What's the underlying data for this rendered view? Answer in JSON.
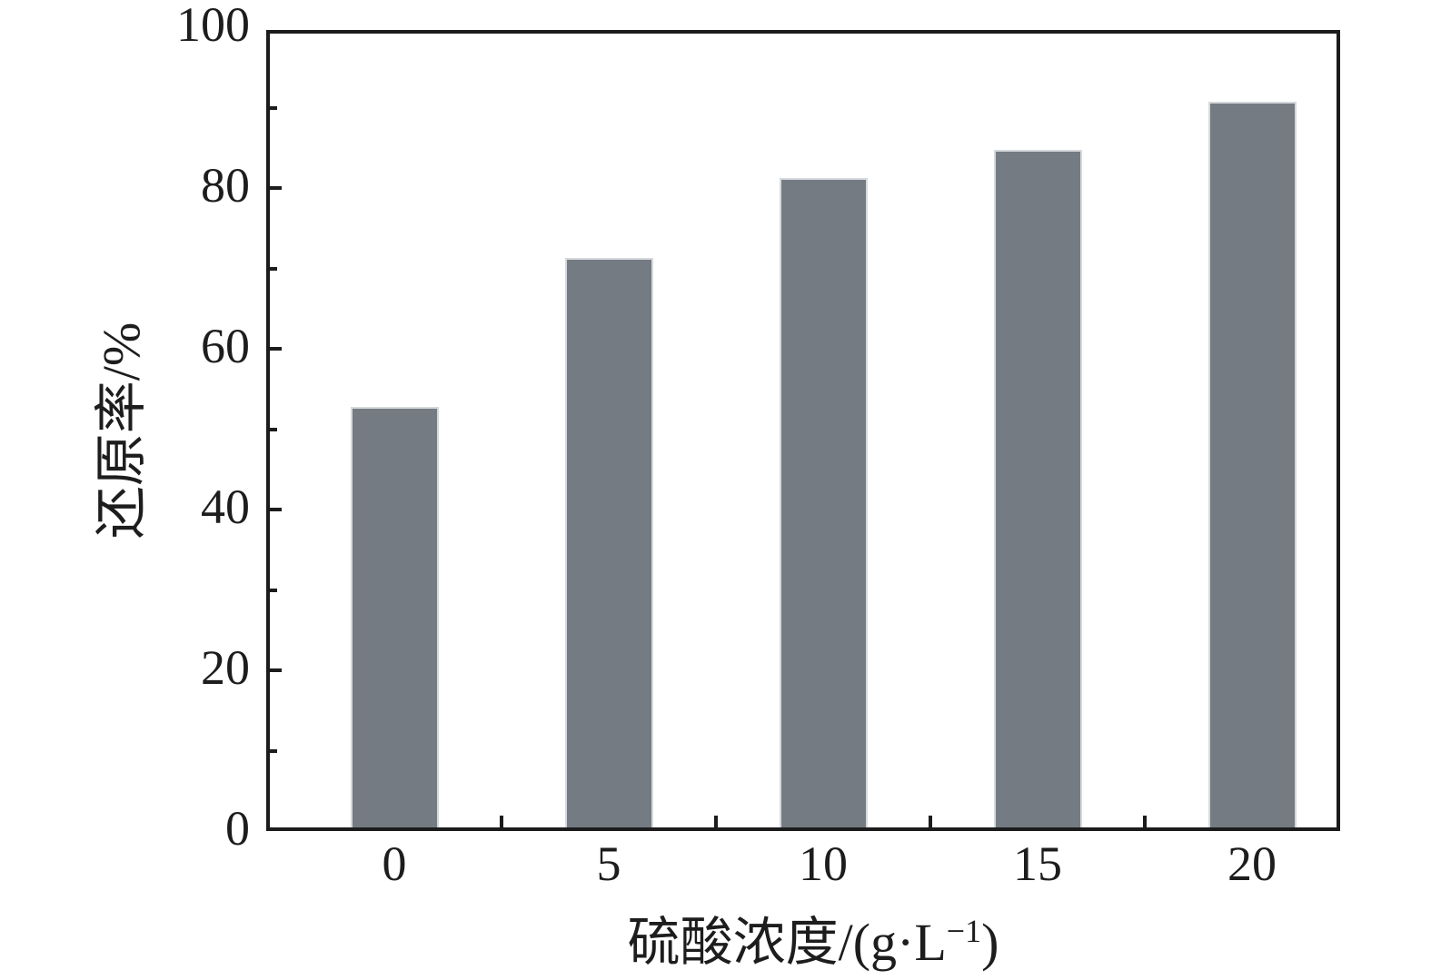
{
  "figure": {
    "background": "#ffffff"
  },
  "chart_data": {
    "type": "bar",
    "title": "",
    "categories": [
      "0",
      "5",
      "10",
      "15",
      "20"
    ],
    "values": [
      53,
      71.5,
      81.5,
      85,
      91
    ],
    "xlabel": "硫酸浓度/(g·L⁻¹)",
    "xlabel_parts": {
      "prefix": "硫酸浓度/(g·L",
      "superscript": "−1",
      "suffix": ")"
    },
    "ylabel": "还原率/%",
    "ylim": [
      0,
      100
    ],
    "y_major_ticks": [
      100,
      80,
      60,
      40,
      20,
      0
    ],
    "y_minor_ticks": [
      90,
      70,
      50,
      30,
      10
    ],
    "x_ticks_between_categories": true,
    "grid": false,
    "legend": null,
    "bar_color": "#757B82",
    "bar_edge_color": "#D6D9DC",
    "axis_color": "#1C1C1C",
    "text_color": "#1D1D1D"
  }
}
